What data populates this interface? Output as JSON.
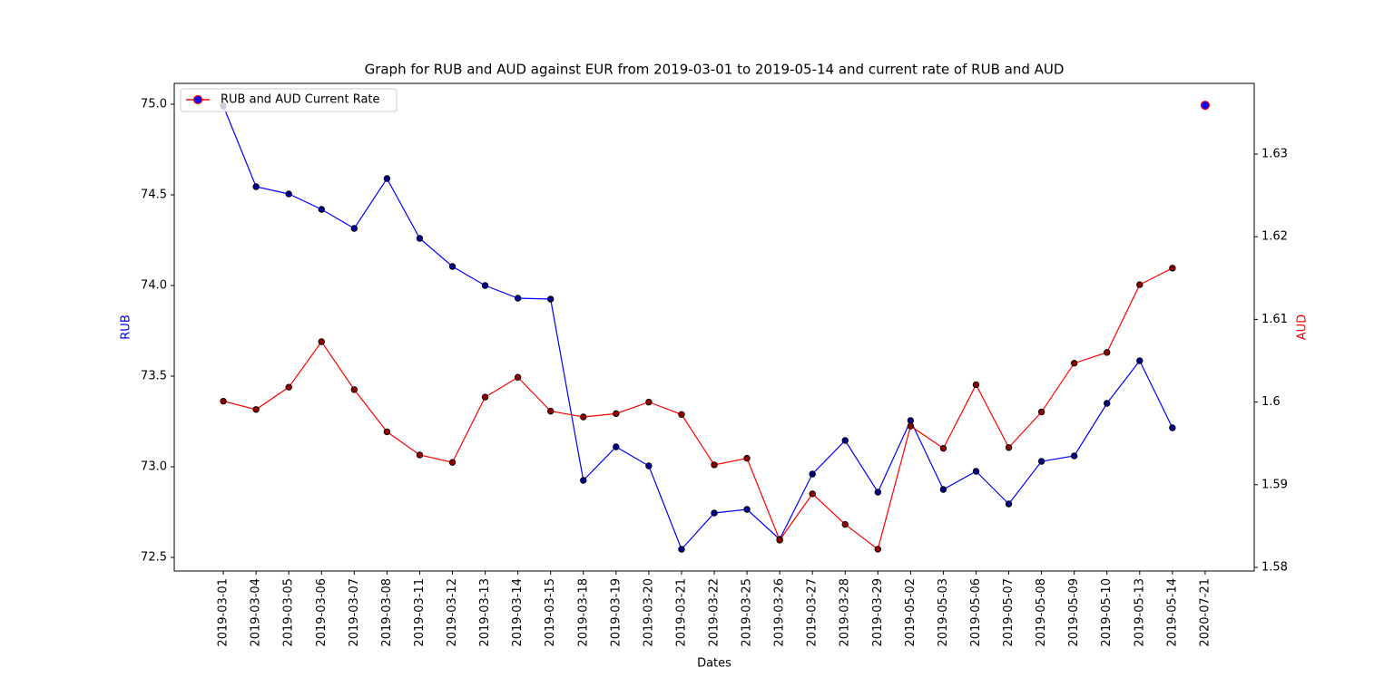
{
  "chart_data": {
    "type": "line",
    "title": "Graph for RUB and AUD against EUR from 2019-03-01 to 2019-05-14 and current rate of RUB and AUD",
    "xlabel": "Dates",
    "ylabel": "RUB",
    "y2label": "AUD",
    "categories": [
      "2019-03-01",
      "2019-03-04",
      "2019-03-05",
      "2019-03-06",
      "2019-03-07",
      "2019-03-08",
      "2019-03-11",
      "2019-03-12",
      "2019-03-13",
      "2019-03-14",
      "2019-03-15",
      "2019-03-18",
      "2019-03-19",
      "2019-03-20",
      "2019-03-21",
      "2019-03-22",
      "2019-03-25",
      "2019-03-26",
      "2019-03-27",
      "2019-03-28",
      "2019-03-29",
      "2019-05-02",
      "2019-05-03",
      "2019-05-06",
      "2019-05-07",
      "2019-05-08",
      "2019-05-09",
      "2019-05-10",
      "2019-05-13",
      "2019-05-14",
      "2020-07-21"
    ],
    "series": [
      {
        "color": "blue",
        "marker_color": "#00008b",
        "axis": "y",
        "values": [
          74.99,
          74.545,
          74.505,
          74.42,
          74.315,
          74.59,
          74.26,
          74.105,
          74.0,
          73.93,
          73.925,
          72.925,
          73.11,
          73.005,
          72.545,
          72.745,
          72.765,
          72.6,
          72.96,
          73.145,
          72.86,
          73.255,
          72.875,
          72.975,
          72.795,
          73.03,
          73.06,
          73.35,
          73.585,
          73.215,
          null
        ]
      },
      {
        "color": "red",
        "marker_color": "#8b0000",
        "axis": "y2",
        "values": [
          1.6001,
          1.5991,
          1.6018,
          1.6073,
          1.6015,
          1.5964,
          1.5936,
          1.5927,
          1.6006,
          1.603,
          1.5989,
          1.5982,
          1.5986,
          1.6,
          1.5985,
          1.5924,
          1.5932,
          1.5833,
          1.5889,
          1.5852,
          1.5822,
          1.5971,
          1.5944,
          1.6021,
          1.5945,
          1.5988,
          1.6047,
          1.606,
          1.6142,
          1.6162,
          null
        ]
      },
      {
        "name": "RUB and AUD Current Rate",
        "color": "red",
        "marker_color": "blue",
        "axis": "y2",
        "values": [
          null,
          null,
          null,
          null,
          null,
          null,
          null,
          null,
          null,
          null,
          null,
          null,
          null,
          null,
          null,
          null,
          null,
          null,
          null,
          null,
          null,
          null,
          null,
          null,
          null,
          null,
          null,
          null,
          null,
          null,
          1.6359
        ]
      }
    ],
    "ylim": [
      72.425,
      75.115
    ],
    "yticks": [
      72.5,
      {
        "value": 73,
        "label": "73.0"
      },
      73.5,
      {
        "value": 74,
        "label": "74.0"
      },
      74.5,
      {
        "value": 75,
        "label": "75.0"
      }
    ],
    "y2lim": [
      1.57956,
      1.63855
    ],
    "y2ticks": [
      1.58,
      1.59,
      1.6,
      1.61,
      1.62,
      1.63
    ],
    "legend": "upper left"
  }
}
